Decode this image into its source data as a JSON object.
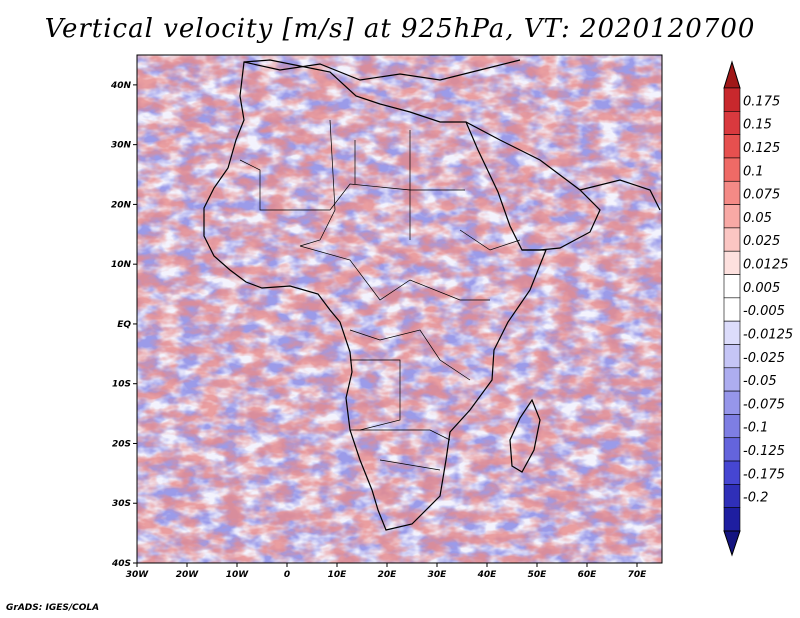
{
  "title": "Vertical velocity [m/s] at 925hPa, VT: 2020120700",
  "footer": "GrADS: IGES/COLA",
  "map": {
    "lon_range": [
      -30,
      75
    ],
    "lat_range": [
      -40,
      45
    ],
    "lat_ticks": [
      {
        "value": 40,
        "label": "40N"
      },
      {
        "value": 30,
        "label": "30N"
      },
      {
        "value": 20,
        "label": "20N"
      },
      {
        "value": 10,
        "label": "10N"
      },
      {
        "value": 0,
        "label": "EQ"
      },
      {
        "value": -10,
        "label": "10S"
      },
      {
        "value": -20,
        "label": "20S"
      },
      {
        "value": -30,
        "label": "30S"
      },
      {
        "value": -40,
        "label": "40S"
      }
    ],
    "lon_ticks": [
      {
        "value": -30,
        "label": "30W"
      },
      {
        "value": -20,
        "label": "20W"
      },
      {
        "value": -10,
        "label": "10W"
      },
      {
        "value": 0,
        "label": "0"
      },
      {
        "value": 10,
        "label": "10E"
      },
      {
        "value": 20,
        "label": "20E"
      },
      {
        "value": 30,
        "label": "30E"
      },
      {
        "value": 40,
        "label": "40E"
      },
      {
        "value": 50,
        "label": "50E"
      },
      {
        "value": 60,
        "label": "60E"
      },
      {
        "value": 70,
        "label": "70E"
      }
    ]
  },
  "colorbar": {
    "labels": [
      "0.175",
      "0.15",
      "0.125",
      "0.1",
      "0.075",
      "0.05",
      "0.025",
      "0.0125",
      "0.005",
      "-0.005",
      "-0.0125",
      "-0.025",
      "-0.05",
      "-0.075",
      "-0.1",
      "-0.125",
      "-0.175",
      "-0.2"
    ],
    "colors": [
      "#c8282d",
      "#d9393e",
      "#e6504f",
      "#ef6a66",
      "#f48a86",
      "#f8a9a5",
      "#fbc6c3",
      "#fde0de",
      "#ffffff",
      "#ffffff",
      "#dcdcfb",
      "#c5c5f6",
      "#adadf0",
      "#9696ea",
      "#7e7ee3",
      "#6464dc",
      "#4646d2",
      "#2f2fb8",
      "#1e1ea0"
    ]
  }
}
